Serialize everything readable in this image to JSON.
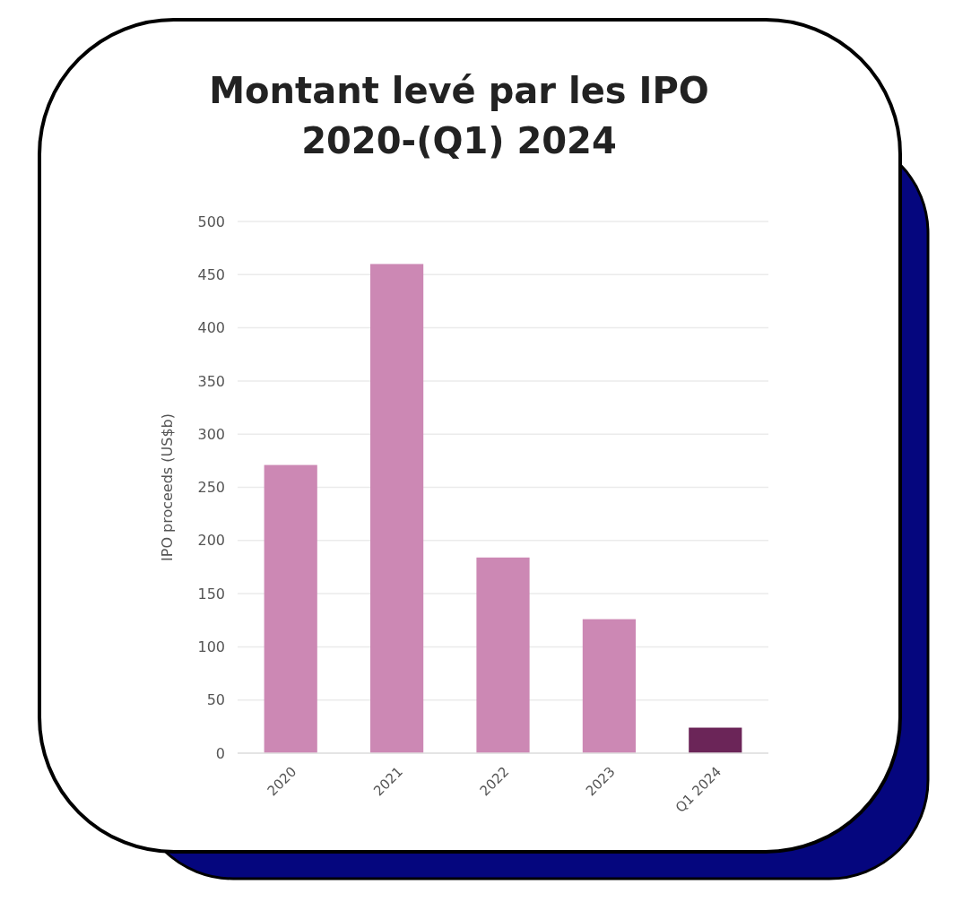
{
  "chart_data": {
    "type": "bar",
    "title": "Montant levé par les IPO\n2020-(Q1) 2024",
    "ylabel": "IPO proceeds (US$b)",
    "categories": [
      "2020",
      "2021",
      "2022",
      "2023",
      "Q1 2024"
    ],
    "values": [
      271,
      460,
      184,
      126,
      24
    ],
    "colors": [
      "#cc88b4",
      "#cc88b4",
      "#cc88b4",
      "#cc88b4",
      "#6b2558"
    ],
    "ylim": [
      0,
      500
    ],
    "yticks": [
      0,
      50,
      100,
      150,
      200,
      250,
      300,
      350,
      400,
      450,
      500
    ],
    "grid": "y"
  }
}
